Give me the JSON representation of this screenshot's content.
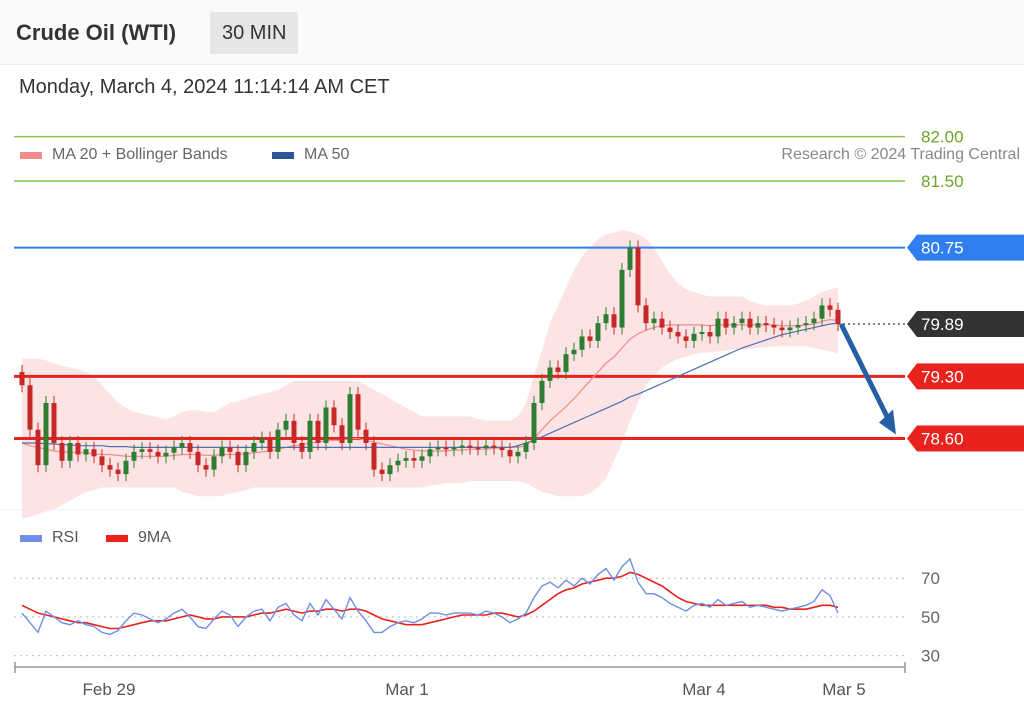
{
  "header": {
    "title": "Crude Oil (WTI)",
    "timeframe": "30 MIN"
  },
  "datetime": "Monday, March 4, 2024 11:14:14 AM CET",
  "legend": {
    "items": [
      {
        "label": "MA 20 + Bollinger Bands",
        "color": "#f28b8b"
      },
      {
        "label": "MA 50",
        "color": "#2b5597"
      }
    ],
    "credit": "Research © 2024 Trading Central"
  },
  "rsi_legend": {
    "items": [
      {
        "label": "RSI",
        "color": "#6f8fe6"
      },
      {
        "label": "9MA",
        "color": "#e8221c"
      }
    ]
  },
  "colors": {
    "up": "#2e7d32",
    "down": "#c62828",
    "band_fill": "#fde4e4",
    "resistance_green": "#8bc34a",
    "resistance_blue": "#2f7ff0",
    "support_red": "#e8221c",
    "current_dark": "#333333",
    "arrow": "#2660a4"
  },
  "chart_data": [
    {
      "type": "candlestick",
      "title": "Crude Oil (WTI)",
      "timeframe": "30 MIN",
      "ylim": [
        77.3,
        82.3
      ],
      "x_labels": [
        "Feb 29",
        "Mar 1",
        "Mar 4",
        "Mar 5"
      ],
      "levels": [
        {
          "value": 82.0,
          "label": "82.00",
          "kind": "resistance-green"
        },
        {
          "value": 81.5,
          "label": "81.50",
          "kind": "resistance-green"
        },
        {
          "value": 80.75,
          "label": "80.75",
          "kind": "resistance-blue"
        },
        {
          "value": 79.89,
          "label": "79.89",
          "kind": "current"
        },
        {
          "value": 79.3,
          "label": "79.30",
          "kind": "support-red"
        },
        {
          "value": 78.6,
          "label": "78.60",
          "kind": "support-red"
        }
      ],
      "close_series": [
        79.2,
        78.7,
        78.3,
        79.0,
        78.55,
        78.35,
        78.55,
        78.42,
        78.48,
        78.4,
        78.3,
        78.25,
        78.2,
        78.35,
        78.45,
        78.48,
        78.45,
        78.4,
        78.44,
        78.5,
        78.55,
        78.45,
        78.3,
        78.25,
        78.4,
        78.5,
        78.45,
        78.3,
        78.45,
        78.55,
        78.6,
        78.45,
        78.7,
        78.8,
        78.55,
        78.45,
        78.8,
        78.55,
        78.95,
        78.75,
        78.55,
        79.1,
        78.7,
        78.55,
        78.25,
        78.2,
        78.3,
        78.35,
        78.38,
        78.35,
        78.4,
        78.48,
        78.5,
        78.48,
        78.5,
        78.52,
        78.5,
        78.49,
        78.52,
        78.5,
        78.47,
        78.4,
        78.45,
        78.55,
        79.0,
        79.25,
        79.4,
        79.35,
        79.55,
        79.6,
        79.75,
        79.7,
        79.9,
        80.0,
        79.85,
        80.5,
        80.75,
        80.1,
        79.9,
        79.95,
        79.85,
        79.8,
        79.75,
        79.7,
        79.78,
        79.8,
        79.75,
        79.95,
        79.85,
        79.9,
        79.95,
        79.85,
        79.9,
        79.88,
        79.85,
        79.82,
        79.85,
        79.88,
        79.9,
        79.95,
        80.1,
        80.05,
        79.89
      ],
      "ma20": [
        78.55,
        78.52,
        78.5,
        78.48,
        78.46,
        78.45,
        78.45,
        78.44,
        78.44,
        78.43,
        78.42,
        78.42,
        78.41,
        78.4,
        78.4,
        78.4,
        78.4,
        78.4,
        78.4,
        78.41,
        78.42,
        78.42,
        78.42,
        78.41,
        78.41,
        78.42,
        78.42,
        78.42,
        78.43,
        78.44,
        78.45,
        78.46,
        78.48,
        78.5,
        78.52,
        78.53,
        78.55,
        78.56,
        78.58,
        78.58,
        78.58,
        78.6,
        78.6,
        78.58,
        78.56,
        78.54,
        78.52,
        78.5,
        78.48,
        78.47,
        78.46,
        78.46,
        78.46,
        78.46,
        78.47,
        78.47,
        78.48,
        78.48,
        78.48,
        78.49,
        78.5,
        78.5,
        78.5,
        78.52,
        78.6,
        78.7,
        78.8,
        78.88,
        78.96,
        79.05,
        79.15,
        79.25,
        79.35,
        79.45,
        79.52,
        79.62,
        79.72,
        79.78,
        79.82,
        79.85,
        79.87,
        79.88,
        79.88,
        79.88,
        79.88,
        79.88,
        79.87,
        79.88,
        79.88,
        79.88,
        79.88,
        79.88,
        79.88,
        79.88,
        79.88,
        79.87,
        79.87,
        79.87,
        79.88,
        79.89,
        79.92,
        79.94,
        79.93
      ],
      "ma50": [
        78.55,
        78.55,
        78.55,
        78.54,
        78.54,
        78.53,
        78.53,
        78.52,
        78.52,
        78.52,
        78.52,
        78.51,
        78.51,
        78.51,
        78.5,
        78.5,
        78.5,
        78.5,
        78.5,
        78.5,
        78.5,
        78.5,
        78.5,
        78.5,
        78.5,
        78.5,
        78.5,
        78.5,
        78.5,
        78.5,
        78.5,
        78.5,
        78.5,
        78.5,
        78.5,
        78.5,
        78.5,
        78.5,
        78.5,
        78.5,
        78.5,
        78.5,
        78.5,
        78.5,
        78.5,
        78.5,
        78.5,
        78.5,
        78.5,
        78.5,
        78.5,
        78.5,
        78.5,
        78.5,
        78.5,
        78.5,
        78.5,
        78.5,
        78.5,
        78.5,
        78.5,
        78.5,
        78.52,
        78.55,
        78.58,
        78.62,
        78.66,
        78.7,
        78.74,
        78.78,
        78.82,
        78.86,
        78.9,
        78.94,
        78.98,
        79.02,
        79.07,
        79.1,
        79.14,
        79.18,
        79.22,
        79.26,
        79.3,
        79.34,
        79.38,
        79.42,
        79.46,
        79.5,
        79.54,
        79.58,
        79.62,
        79.65,
        79.68,
        79.71,
        79.74,
        79.77,
        79.79,
        79.81,
        79.83,
        79.85,
        79.87,
        79.89,
        79.9
      ],
      "bb_upper": [
        79.5,
        79.5,
        79.5,
        79.48,
        79.45,
        79.42,
        79.4,
        79.38,
        79.35,
        79.3,
        79.2,
        79.1,
        79.0,
        78.95,
        78.9,
        78.88,
        78.86,
        78.84,
        78.82,
        78.85,
        78.9,
        78.92,
        78.92,
        78.9,
        78.9,
        78.95,
        79.0,
        79.02,
        79.05,
        79.08,
        79.1,
        79.12,
        79.15,
        79.2,
        79.25,
        79.25,
        79.25,
        79.25,
        79.25,
        79.25,
        79.25,
        79.25,
        79.25,
        79.2,
        79.15,
        79.1,
        79.05,
        79.0,
        78.95,
        78.9,
        78.85,
        78.85,
        78.85,
        78.85,
        78.85,
        78.85,
        78.85,
        78.82,
        78.8,
        78.8,
        78.8,
        78.8,
        78.85,
        79.0,
        79.3,
        79.6,
        79.9,
        80.1,
        80.3,
        80.5,
        80.65,
        80.75,
        80.85,
        80.9,
        80.92,
        80.95,
        80.93,
        80.9,
        80.85,
        80.75,
        80.6,
        80.45,
        80.35,
        80.28,
        80.25,
        80.22,
        80.2,
        80.2,
        80.2,
        80.2,
        80.2,
        80.15,
        80.12,
        80.1,
        80.1,
        80.1,
        80.1,
        80.12,
        80.15,
        80.2,
        80.25,
        80.28,
        80.3
      ],
      "bb_lower": [
        77.7,
        77.72,
        77.75,
        77.78,
        77.8,
        77.85,
        77.9,
        77.95,
        78.0,
        78.02,
        78.05,
        78.05,
        78.05,
        78.05,
        78.05,
        78.05,
        78.05,
        78.05,
        78.05,
        78.05,
        78.0,
        77.98,
        77.95,
        77.95,
        77.95,
        77.95,
        77.98,
        78.0,
        78.02,
        78.05,
        78.05,
        78.05,
        78.05,
        78.05,
        78.05,
        78.05,
        78.05,
        78.05,
        78.05,
        78.05,
        78.05,
        78.05,
        78.05,
        78.05,
        78.05,
        78.05,
        78.05,
        78.05,
        78.05,
        78.05,
        78.05,
        78.07,
        78.08,
        78.1,
        78.1,
        78.1,
        78.12,
        78.12,
        78.12,
        78.12,
        78.12,
        78.12,
        78.12,
        78.1,
        78.05,
        78.0,
        77.98,
        77.95,
        77.95,
        77.95,
        77.95,
        77.98,
        78.05,
        78.15,
        78.35,
        78.55,
        78.8,
        79.0,
        79.2,
        79.3,
        79.4,
        79.45,
        79.5,
        79.52,
        79.55,
        79.56,
        79.57,
        79.58,
        79.59,
        79.6,
        79.6,
        79.61,
        79.62,
        79.63,
        79.64,
        79.64,
        79.64,
        79.64,
        79.64,
        79.62,
        79.6,
        79.58,
        79.56
      ],
      "forecast": {
        "from": 79.89,
        "to": 78.6
      }
    },
    {
      "type": "line",
      "title": "RSI",
      "ylim": [
        20,
        82
      ],
      "y_ticks": [
        70,
        50,
        30
      ],
      "series": [
        {
          "name": "RSI",
          "values": [
            52,
            47,
            42,
            53,
            50,
            47,
            46,
            48,
            46,
            45,
            42,
            41,
            43,
            48,
            52,
            51,
            49,
            47,
            49,
            52,
            54,
            50,
            45,
            44,
            49,
            53,
            51,
            45,
            50,
            53,
            54,
            48,
            55,
            57,
            51,
            48,
            57,
            51,
            59,
            54,
            49,
            60,
            53,
            48,
            42,
            42,
            45,
            47,
            48,
            47,
            49,
            52,
            52,
            51,
            52,
            52,
            52,
            51,
            53,
            52,
            50,
            47,
            49,
            52,
            60,
            66,
            68,
            65,
            69,
            66,
            70,
            67,
            72,
            75,
            69,
            76,
            80,
            68,
            62,
            62,
            60,
            57,
            55,
            53,
            56,
            57,
            55,
            59,
            56,
            57,
            58,
            55,
            56,
            55,
            54,
            53,
            54,
            55,
            56,
            58,
            64,
            61,
            52
          ]
        },
        {
          "name": "9MA",
          "values": [
            56,
            54,
            52,
            51,
            50,
            49,
            48,
            47,
            47,
            46,
            45,
            44,
            44,
            45,
            46,
            47,
            48,
            48,
            48,
            49,
            50,
            51,
            50,
            49,
            49,
            50,
            50,
            50,
            50,
            51,
            52,
            52,
            53,
            54,
            53,
            52,
            53,
            53,
            54,
            54,
            53,
            54,
            54,
            53,
            51,
            49,
            48,
            47,
            46,
            46,
            46,
            47,
            48,
            49,
            50,
            51,
            51,
            51,
            51,
            52,
            52,
            51,
            50,
            51,
            53,
            56,
            59,
            62,
            64,
            65,
            67,
            68,
            69,
            70,
            70,
            71,
            73,
            72,
            70,
            68,
            66,
            63,
            60,
            58,
            57,
            56,
            56,
            56,
            56,
            56,
            56,
            56,
            56,
            56,
            55,
            55,
            54,
            54,
            54,
            55,
            56,
            56,
            55
          ]
        }
      ]
    }
  ]
}
